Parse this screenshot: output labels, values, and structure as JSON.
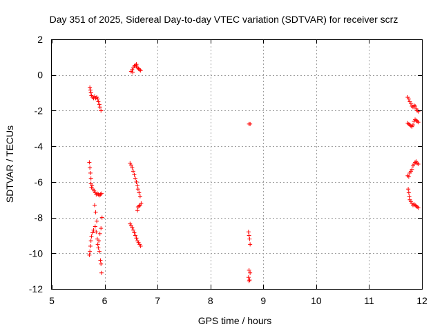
{
  "chart_data": {
    "type": "scatter",
    "title": "Day 351 of 2025, Sidereal Day-to-day VTEC variation (SDTVAR) for receiver scrz",
    "xlabel": "GPS time / hours",
    "ylabel": "SDTVAR / TECUs",
    "xlim": [
      5,
      12
    ],
    "ylim": [
      -12,
      2
    ],
    "xticks": [
      5,
      6,
      7,
      8,
      9,
      10,
      11,
      12
    ],
    "yticks": [
      2,
      0,
      -2,
      -4,
      -6,
      -8,
      -10,
      -12
    ],
    "xtick_labels": [
      "5",
      "6",
      "7",
      "8",
      "9",
      "10",
      "11",
      "12"
    ],
    "ytick_labels": [
      "2",
      "0",
      "-2",
      "-4",
      "-6",
      "-8",
      "-10",
      "-12"
    ],
    "grid": true,
    "marker": "plus",
    "color": "#ff0000",
    "series": [
      {
        "name": "SDTVAR",
        "points": [
          [
            5.72,
            -0.7
          ],
          [
            5.73,
            -0.85
          ],
          [
            5.74,
            -1.0
          ],
          [
            5.75,
            -1.15
          ],
          [
            5.77,
            -1.25
          ],
          [
            5.79,
            -1.3
          ],
          [
            5.81,
            -1.2
          ],
          [
            5.83,
            -1.3
          ],
          [
            5.85,
            -1.25
          ],
          [
            5.87,
            -1.35
          ],
          [
            5.88,
            -1.5
          ],
          [
            5.9,
            -1.65
          ],
          [
            5.91,
            -1.8
          ],
          [
            5.93,
            -2.0
          ],
          [
            5.71,
            -4.9
          ],
          [
            5.72,
            -5.2
          ],
          [
            5.73,
            -5.5
          ],
          [
            5.74,
            -5.8
          ],
          [
            5.74,
            -6.1
          ],
          [
            5.75,
            -6.3
          ],
          [
            5.76,
            -6.2
          ],
          [
            5.78,
            -6.4
          ],
          [
            5.8,
            -6.5
          ],
          [
            5.82,
            -6.6
          ],
          [
            5.84,
            -6.7
          ],
          [
            5.86,
            -6.65
          ],
          [
            5.88,
            -6.7
          ],
          [
            5.9,
            -6.75
          ],
          [
            5.92,
            -6.7
          ],
          [
            5.94,
            -6.65
          ],
          [
            5.81,
            -7.3
          ],
          [
            5.83,
            -7.7
          ],
          [
            5.85,
            -8.2
          ],
          [
            5.82,
            -8.5
          ],
          [
            5.79,
            -8.7
          ],
          [
            5.77,
            -8.85
          ],
          [
            5.75,
            -9.05
          ],
          [
            5.74,
            -9.3
          ],
          [
            5.73,
            -9.6
          ],
          [
            5.72,
            -9.9
          ],
          [
            5.71,
            -10.1
          ],
          [
            5.84,
            -8.8
          ],
          [
            5.86,
            -9.2
          ],
          [
            5.87,
            -9.5
          ],
          [
            5.88,
            -9.7
          ],
          [
            5.9,
            -9.9
          ],
          [
            5.92,
            -10.4
          ],
          [
            5.93,
            -10.6
          ],
          [
            5.94,
            -11.1
          ],
          [
            5.95,
            -8.0
          ],
          [
            5.93,
            -8.6
          ],
          [
            5.91,
            -8.9
          ],
          [
            5.89,
            -9.3
          ],
          [
            6.5,
            0.2
          ],
          [
            6.52,
            0.3
          ],
          [
            6.54,
            0.4
          ],
          [
            6.56,
            0.5
          ],
          [
            6.58,
            0.55
          ],
          [
            6.6,
            0.5
          ],
          [
            6.62,
            0.4
          ],
          [
            6.64,
            0.35
          ],
          [
            6.66,
            0.3
          ],
          [
            6.68,
            0.25
          ],
          [
            6.53,
            0.15
          ],
          [
            6.6,
            0.6
          ],
          [
            6.48,
            -4.95
          ],
          [
            6.5,
            -5.05
          ],
          [
            6.52,
            -5.2
          ],
          [
            6.54,
            -5.4
          ],
          [
            6.56,
            -5.6
          ],
          [
            6.58,
            -5.8
          ],
          [
            6.6,
            -6.0
          ],
          [
            6.62,
            -6.2
          ],
          [
            6.63,
            -6.4
          ],
          [
            6.65,
            -6.6
          ],
          [
            6.67,
            -6.8
          ],
          [
            6.69,
            -7.2
          ],
          [
            6.67,
            -7.3
          ],
          [
            6.65,
            -7.35
          ],
          [
            6.63,
            -7.4
          ],
          [
            6.62,
            -7.6
          ],
          [
            6.48,
            -8.35
          ],
          [
            6.5,
            -8.45
          ],
          [
            6.52,
            -8.55
          ],
          [
            6.54,
            -8.7
          ],
          [
            6.56,
            -8.85
          ],
          [
            6.58,
            -9.0
          ],
          [
            6.6,
            -9.15
          ],
          [
            6.62,
            -9.3
          ],
          [
            6.64,
            -9.4
          ],
          [
            6.66,
            -9.5
          ],
          [
            6.68,
            -9.6
          ],
          [
            8.73,
            -2.75
          ],
          [
            8.75,
            -2.75
          ],
          [
            8.72,
            -8.8
          ],
          [
            8.73,
            -9.0
          ],
          [
            8.74,
            -9.2
          ],
          [
            8.75,
            -9.5
          ],
          [
            8.73,
            -10.95
          ],
          [
            8.75,
            -11.1
          ],
          [
            8.72,
            -11.35
          ],
          [
            8.74,
            -11.5
          ],
          [
            8.73,
            -11.55
          ],
          [
            11.73,
            -1.25
          ],
          [
            11.75,
            -1.35
          ],
          [
            11.77,
            -1.5
          ],
          [
            11.79,
            -1.6
          ],
          [
            11.81,
            -1.75
          ],
          [
            11.83,
            -1.8
          ],
          [
            11.85,
            -1.7
          ],
          [
            11.87,
            -1.75
          ],
          [
            11.89,
            -1.9
          ],
          [
            11.91,
            -2.0
          ],
          [
            11.93,
            -2.05
          ],
          [
            11.73,
            -2.7
          ],
          [
            11.75,
            -2.75
          ],
          [
            11.77,
            -2.8
          ],
          [
            11.79,
            -2.85
          ],
          [
            11.81,
            -2.9
          ],
          [
            11.83,
            -2.8
          ],
          [
            11.85,
            -2.6
          ],
          [
            11.87,
            -2.5
          ],
          [
            11.89,
            -2.55
          ],
          [
            11.91,
            -2.6
          ],
          [
            11.93,
            -2.65
          ],
          [
            11.73,
            -5.65
          ],
          [
            11.75,
            -5.7
          ],
          [
            11.77,
            -5.5
          ],
          [
            11.79,
            -5.4
          ],
          [
            11.81,
            -5.3
          ],
          [
            11.83,
            -5.1
          ],
          [
            11.85,
            -5.0
          ],
          [
            11.87,
            -4.9
          ],
          [
            11.89,
            -4.85
          ],
          [
            11.91,
            -4.95
          ],
          [
            11.93,
            -5.0
          ],
          [
            11.74,
            -6.4
          ],
          [
            11.75,
            -6.6
          ],
          [
            11.76,
            -6.8
          ],
          [
            11.77,
            -7.0
          ],
          [
            11.79,
            -7.1
          ],
          [
            11.81,
            -7.2
          ],
          [
            11.83,
            -7.3
          ],
          [
            11.85,
            -7.25
          ],
          [
            11.87,
            -7.3
          ],
          [
            11.89,
            -7.35
          ],
          [
            11.91,
            -7.4
          ],
          [
            11.93,
            -7.45
          ]
        ]
      }
    ]
  }
}
